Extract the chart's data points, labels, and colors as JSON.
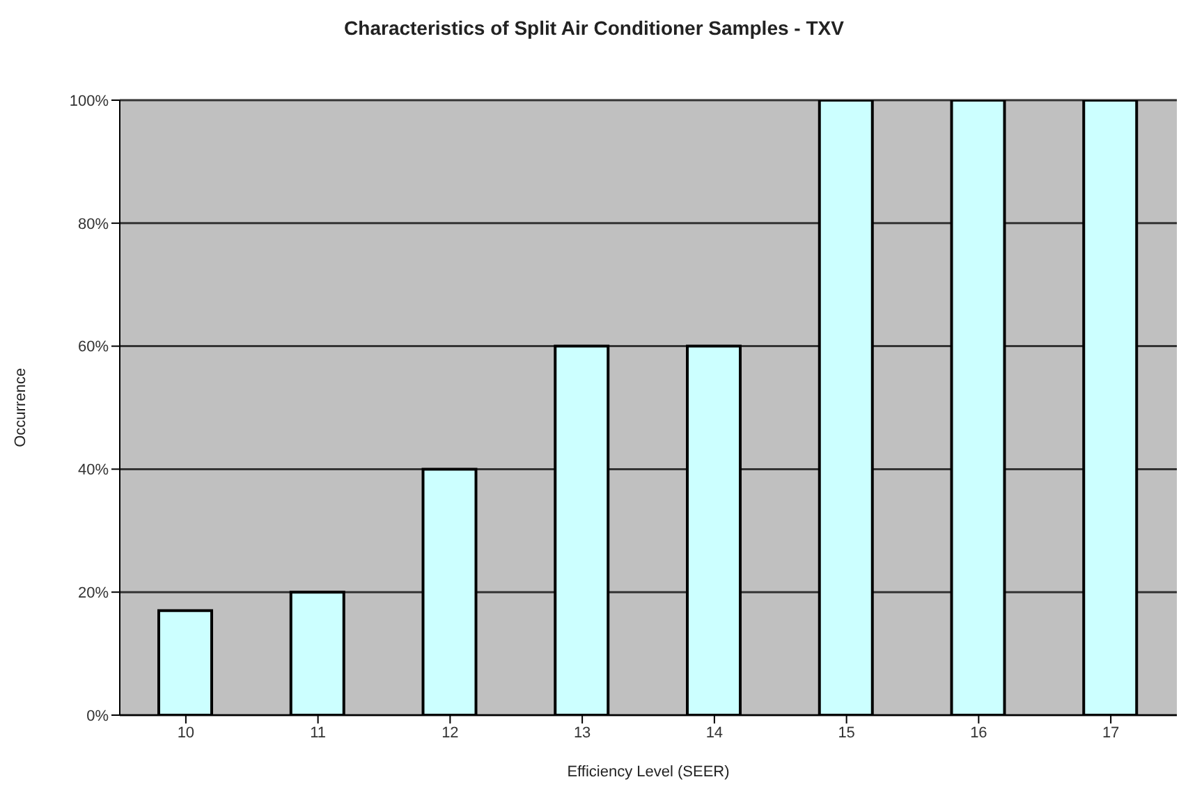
{
  "chart_data": {
    "type": "bar",
    "title": "Characteristics of Split Air Conditioner Samples - TXV",
    "xlabel": "Efficiency Level (SEER)",
    "ylabel": "Occurrence",
    "categories": [
      "10",
      "11",
      "12",
      "13",
      "14",
      "15",
      "16",
      "17"
    ],
    "values": [
      17,
      20,
      40,
      60,
      60,
      100,
      100,
      100
    ],
    "color": "#ccffff",
    "ylim": [
      0,
      100
    ],
    "yticks": [
      {
        "value": 0,
        "label": "0%"
      },
      {
        "value": 20,
        "label": "20%"
      },
      {
        "value": 40,
        "label": "40%"
      },
      {
        "value": 60,
        "label": "60%"
      },
      {
        "value": 80,
        "label": "80%"
      },
      {
        "value": 100,
        "label": "100%"
      }
    ],
    "grid": "y",
    "legend": false
  }
}
